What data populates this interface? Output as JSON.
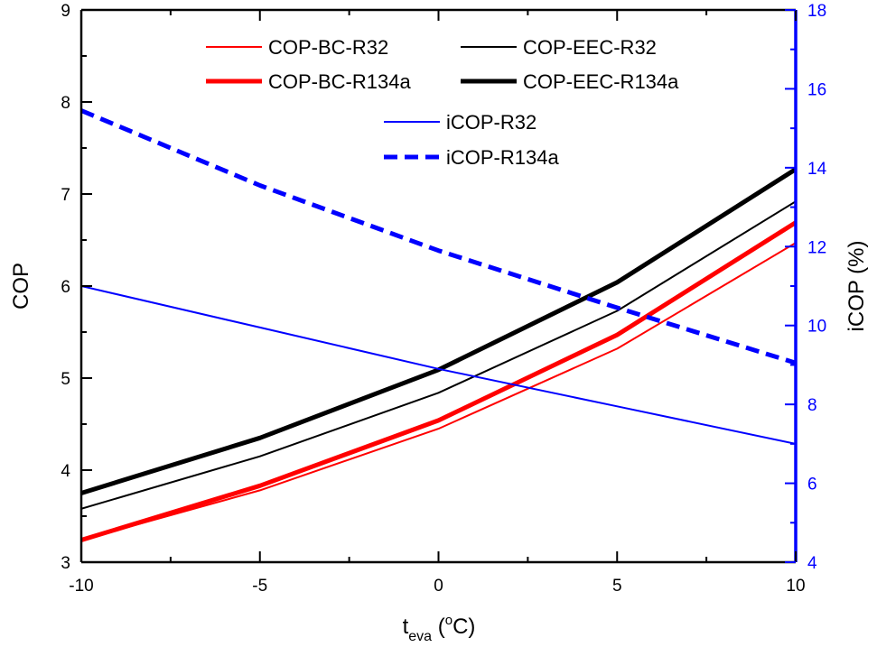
{
  "chart_data": {
    "type": "line",
    "x": [
      -10,
      -5,
      0,
      5,
      10
    ],
    "xlim": [
      -10,
      10
    ],
    "x_ticks": [
      -10,
      -5,
      0,
      5,
      10
    ],
    "x_tick_labels": [
      "-10",
      "-5",
      "0",
      "5",
      "10"
    ],
    "ylim_left": [
      3,
      9
    ],
    "y_left_ticks": [
      3,
      4,
      5,
      6,
      7,
      8,
      9
    ],
    "y_left_tick_labels": [
      "3",
      "4",
      "5",
      "6",
      "7",
      "8",
      "9"
    ],
    "ylim_right": [
      4,
      18
    ],
    "y_right_ticks": [
      4,
      6,
      8,
      10,
      12,
      14,
      16,
      18
    ],
    "y_right_tick_labels": [
      "4",
      "6",
      "8",
      "10",
      "12",
      "14",
      "16",
      "18"
    ],
    "xlabel": {
      "main": "t",
      "sub": "eva",
      "unit_open": " (",
      "degree": "o",
      "unit_close": "C)"
    },
    "ylabel_left": "COP",
    "ylabel_right": "iCOP (%)",
    "colors": {
      "red": "#ff0000",
      "black": "#000000",
      "blue": "#0000ff"
    },
    "series": [
      {
        "id": "cop-bc-r32",
        "name": "COP-BC-R32",
        "axis": "left",
        "color": "#ff0000",
        "weight": "thin",
        "dash": false,
        "values": [
          3.24,
          3.78,
          4.45,
          5.32,
          6.47
        ]
      },
      {
        "id": "cop-eec-r32",
        "name": "COP-EEC-R32",
        "axis": "left",
        "color": "#000000",
        "weight": "thin",
        "dash": false,
        "values": [
          3.58,
          4.15,
          4.84,
          5.73,
          6.92
        ]
      },
      {
        "id": "cop-bc-r134a",
        "name": "COP-BC-R134a",
        "axis": "left",
        "color": "#ff0000",
        "weight": "thick",
        "dash": false,
        "values": [
          3.24,
          3.83,
          4.54,
          5.47,
          6.69
        ]
      },
      {
        "id": "cop-eec-r134a",
        "name": "COP-EEC-R134a",
        "axis": "left",
        "color": "#000000",
        "weight": "thick",
        "dash": false,
        "values": [
          3.75,
          4.35,
          5.09,
          6.04,
          7.27
        ]
      },
      {
        "id": "icop-r32",
        "name": "iCOP-R32",
        "axis": "right",
        "color": "#0000ff",
        "weight": "thin",
        "dash": false,
        "values": [
          11.0,
          9.95,
          8.9,
          7.95,
          7.0
        ]
      },
      {
        "id": "icop-r134a",
        "name": "iCOP-R134a",
        "axis": "right",
        "color": "#0000ff",
        "weight": "thick",
        "dash": true,
        "values": [
          15.45,
          13.55,
          11.9,
          10.45,
          9.05
        ]
      }
    ]
  }
}
